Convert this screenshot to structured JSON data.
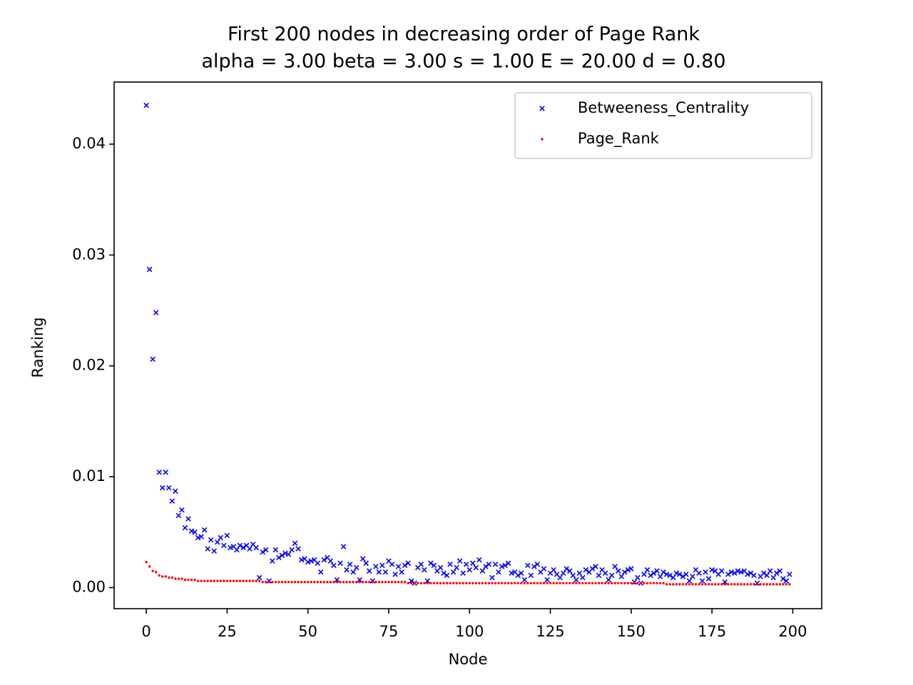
{
  "chart_data": {
    "type": "scatter",
    "title": "First 200 nodes in decreasing order of Page Rank",
    "subtitle": "alpha = 3.00 beta = 3.00 s = 1.00 E = 20.00 d = 0.80",
    "x_label": "Node",
    "y_label": "Ranking",
    "x": [
      0,
      1,
      2,
      3,
      4,
      5,
      6,
      7,
      8,
      9,
      10,
      11,
      12,
      13,
      14,
      15,
      16,
      17,
      18,
      19,
      20,
      21,
      22,
      23,
      24,
      25,
      26,
      27,
      28,
      29,
      30,
      31,
      32,
      33,
      34,
      35,
      36,
      37,
      38,
      39,
      40,
      41,
      42,
      43,
      44,
      45,
      46,
      47,
      48,
      49,
      50,
      51,
      52,
      53,
      54,
      55,
      56,
      57,
      58,
      59,
      60,
      61,
      62,
      63,
      64,
      65,
      66,
      67,
      68,
      69,
      70,
      71,
      72,
      73,
      74,
      75,
      76,
      77,
      78,
      79,
      80,
      81,
      82,
      83,
      84,
      85,
      86,
      87,
      88,
      89,
      90,
      91,
      92,
      93,
      94,
      95,
      96,
      97,
      98,
      99,
      100,
      101,
      102,
      103,
      104,
      105,
      106,
      107,
      108,
      109,
      110,
      111,
      112,
      113,
      114,
      115,
      116,
      117,
      118,
      119,
      120,
      121,
      122,
      123,
      124,
      125,
      126,
      127,
      128,
      129,
      130,
      131,
      132,
      133,
      134,
      135,
      136,
      137,
      138,
      139,
      140,
      141,
      142,
      143,
      144,
      145,
      146,
      147,
      148,
      149,
      150,
      151,
      152,
      153,
      154,
      155,
      156,
      157,
      158,
      159,
      160,
      161,
      162,
      163,
      164,
      165,
      166,
      167,
      168,
      169,
      170,
      171,
      172,
      173,
      174,
      175,
      176,
      177,
      178,
      179,
      180,
      181,
      182,
      183,
      184,
      185,
      186,
      187,
      188,
      189,
      190,
      191,
      192,
      193,
      194,
      195,
      196,
      197,
      198,
      199
    ],
    "series": [
      {
        "name": "Betweeness_Centrality",
        "color": "#0000ff",
        "marker": "x",
        "values": [
          0.0435,
          0.0287,
          0.0206,
          0.0248,
          0.0104,
          0.009,
          0.0104,
          0.009,
          0.0078,
          0.0087,
          0.0065,
          0.007,
          0.0054,
          0.0062,
          0.0051,
          0.005,
          0.0045,
          0.0046,
          0.0052,
          0.0035,
          0.0043,
          0.0033,
          0.0041,
          0.0045,
          0.0038,
          0.0047,
          0.0036,
          0.0037,
          0.0034,
          0.0038,
          0.0036,
          0.0038,
          0.0035,
          0.0039,
          0.0036,
          0.0009,
          0.0032,
          0.0034,
          0.0006,
          0.0024,
          0.0034,
          0.0027,
          0.0029,
          0.0031,
          0.003,
          0.0034,
          0.004,
          0.0035,
          0.0025,
          0.0026,
          0.0023,
          0.0024,
          0.0025,
          0.0022,
          0.0014,
          0.0025,
          0.0027,
          0.0024,
          0.002,
          0.0007,
          0.0022,
          0.0037,
          0.0016,
          0.0021,
          0.0014,
          0.0018,
          0.0007,
          0.0026,
          0.0022,
          0.0015,
          0.0006,
          0.0019,
          0.0014,
          0.002,
          0.0014,
          0.0024,
          0.0021,
          0.0012,
          0.0019,
          0.0014,
          0.002,
          0.0022,
          0.0006,
          0.0004,
          0.0018,
          0.0021,
          0.0016,
          0.0006,
          0.0022,
          0.002,
          0.0015,
          0.0018,
          0.0013,
          0.0011,
          0.0021,
          0.0014,
          0.0018,
          0.0024,
          0.0013,
          0.0021,
          0.0016,
          0.0022,
          0.0018,
          0.0025,
          0.0015,
          0.0019,
          0.0021,
          0.0009,
          0.0021,
          0.0014,
          0.0019,
          0.002,
          0.0022,
          0.0013,
          0.0014,
          0.0011,
          0.0013,
          0.0007,
          0.002,
          0.0011,
          0.0019,
          0.0021,
          0.0014,
          0.0017,
          0.0007,
          0.0013,
          0.0016,
          0.0012,
          0.0009,
          0.0013,
          0.0017,
          0.0015,
          0.0011,
          0.0007,
          0.0013,
          0.0009,
          0.0016,
          0.0014,
          0.0017,
          0.0019,
          0.0011,
          0.0016,
          0.0013,
          0.0007,
          0.0011,
          0.0019,
          0.0015,
          0.001,
          0.0014,
          0.0016,
          0.0017,
          0.0005,
          0.0009,
          0.0004,
          0.0012,
          0.0016,
          0.0011,
          0.0013,
          0.0015,
          0.001,
          0.0014,
          0.0012,
          0.0011,
          0.0009,
          0.0013,
          0.0012,
          0.001,
          0.0012,
          0.0006,
          0.001,
          0.0016,
          0.0013,
          0.0006,
          0.0014,
          0.0008,
          0.0016,
          0.0015,
          0.0012,
          0.0015,
          0.0005,
          0.0012,
          0.0014,
          0.0013,
          0.0015,
          0.0014,
          0.0015,
          0.0012,
          0.0013,
          0.0011,
          0.0004,
          0.001,
          0.0013,
          0.0011,
          0.0015,
          0.0009,
          0.0013,
          0.0015,
          0.0008,
          0.0006,
          0.0012
        ]
      },
      {
        "name": "Page_Rank",
        "color": "#ff0000",
        "marker": "o",
        "values": [
          0.0023,
          0.0019,
          0.0015,
          0.0014,
          0.0011,
          0.001,
          0.001,
          0.0009,
          0.0009,
          0.0008,
          0.0008,
          0.0008,
          0.0007,
          0.0007,
          0.0007,
          0.0007,
          0.0006,
          0.0006,
          0.0006,
          0.0006,
          0.0006,
          0.0006,
          0.0006,
          0.0006,
          0.0006,
          0.0006,
          0.0006,
          0.0006,
          0.0006,
          0.0006,
          0.0006,
          0.0006,
          0.0006,
          0.0006,
          0.0006,
          0.0006,
          0.0005,
          0.0005,
          0.0005,
          0.0005,
          0.0005,
          0.0005,
          0.0005,
          0.0005,
          0.0005,
          0.0005,
          0.0005,
          0.0005,
          0.0005,
          0.0005,
          0.0005,
          0.0005,
          0.0005,
          0.0005,
          0.0005,
          0.0005,
          0.0005,
          0.0005,
          0.0005,
          0.0005,
          0.0005,
          0.0005,
          0.0005,
          0.0005,
          0.0005,
          0.0005,
          0.0005,
          0.0005,
          0.0005,
          0.0005,
          0.0005,
          0.0005,
          0.0005,
          0.0005,
          0.0005,
          0.0005,
          0.0005,
          0.0005,
          0.0005,
          0.0005,
          0.0005,
          0.0004,
          0.0004,
          0.0004,
          0.0004,
          0.0004,
          0.0004,
          0.0004,
          0.0004,
          0.0004,
          0.0004,
          0.0004,
          0.0004,
          0.0004,
          0.0004,
          0.0004,
          0.0004,
          0.0004,
          0.0004,
          0.0004,
          0.0004,
          0.0004,
          0.0004,
          0.0004,
          0.0004,
          0.0004,
          0.0004,
          0.0004,
          0.0004,
          0.0004,
          0.0004,
          0.0004,
          0.0004,
          0.0004,
          0.0004,
          0.0004,
          0.0004,
          0.0004,
          0.0004,
          0.0004,
          0.0004,
          0.0004,
          0.0004,
          0.0004,
          0.0004,
          0.0004,
          0.0004,
          0.0004,
          0.0004,
          0.0004,
          0.0004,
          0.0004,
          0.0004,
          0.0004,
          0.0004,
          0.0004,
          0.0004,
          0.0004,
          0.0004,
          0.0004,
          0.0004,
          0.0004,
          0.0004,
          0.0004,
          0.0004,
          0.0004,
          0.0004,
          0.0004,
          0.0004,
          0.0004,
          0.0004,
          0.0004,
          0.0004,
          0.0004,
          0.0004,
          0.0004,
          0.0004,
          0.0004,
          0.0004,
          0.0004,
          0.0004,
          0.0003,
          0.0003,
          0.0003,
          0.0003,
          0.0003,
          0.0003,
          0.0003,
          0.0003,
          0.0003,
          0.0003,
          0.0003,
          0.0003,
          0.0003,
          0.0003,
          0.0003,
          0.0003,
          0.0003,
          0.0003,
          0.0003,
          0.0003,
          0.0003,
          0.0003,
          0.0003,
          0.0003,
          0.0003,
          0.0003,
          0.0003,
          0.0003,
          0.0003,
          0.0003,
          0.0003,
          0.0003,
          0.0003,
          0.0003,
          0.0003,
          0.0003,
          0.0003,
          0.0003,
          0.0003
        ]
      }
    ],
    "xlim": [
      -9.95,
      208.95
    ],
    "xticks": [
      0,
      25,
      50,
      75,
      100,
      125,
      150,
      175,
      200
    ],
    "ylim": [
      -0.0019,
      0.0456
    ],
    "yticks": [
      {
        "value": 0,
        "label": "0.00"
      },
      {
        "value": 0.01,
        "label": "0.01"
      },
      {
        "value": 0.02,
        "label": "0.02"
      },
      {
        "value": 0.03,
        "label": "0.03"
      },
      {
        "value": 0.04,
        "label": "0.04"
      }
    ],
    "legend": "upper right",
    "grid": false
  }
}
